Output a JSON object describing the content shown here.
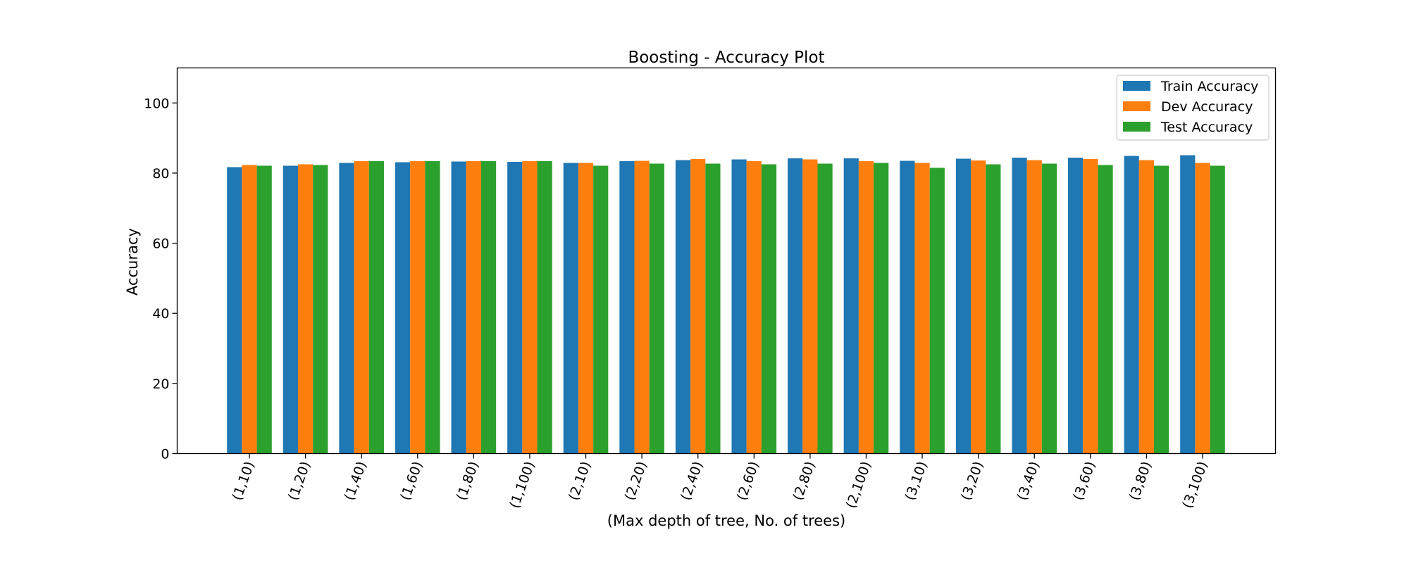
{
  "chart_data": {
    "type": "bar",
    "title": "Boosting - Accuracy Plot",
    "xlabel": "(Max depth of tree, No. of trees)",
    "ylabel": "Accuracy",
    "ylim": [
      0,
      110
    ],
    "yticks": [
      0,
      20,
      40,
      60,
      80,
      100
    ],
    "categories": [
      "(1,10)",
      "(1,20)",
      "(1,40)",
      "(1,60)",
      "(1,80)",
      "(1,100)",
      "(2,10)",
      "(2,20)",
      "(2,40)",
      "(2,60)",
      "(2,80)",
      "(2,100)",
      "(3,10)",
      "(3,20)",
      "(3,40)",
      "(3,60)",
      "(3,80)",
      "(3,100)"
    ],
    "xtick_rotation": "70 degrees",
    "legend_position": "top-right",
    "grid": false,
    "series": [
      {
        "name": "Train Accuracy",
        "color": "#1f77b4",
        "values": [
          81.7,
          82.1,
          82.9,
          83.1,
          83.3,
          83.2,
          82.9,
          83.4,
          83.7,
          83.9,
          84.2,
          84.2,
          83.5,
          84.1,
          84.4,
          84.4,
          84.9,
          85.1
        ]
      },
      {
        "name": "Dev Accuracy",
        "color": "#ff7f0e",
        "values": [
          82.3,
          82.5,
          83.4,
          83.4,
          83.4,
          83.4,
          82.9,
          83.5,
          84.0,
          83.4,
          83.9,
          83.4,
          82.9,
          83.6,
          83.7,
          84.0,
          83.7,
          82.9
        ]
      },
      {
        "name": "Test Accuracy",
        "color": "#2ca02c",
        "values": [
          82.1,
          82.3,
          83.4,
          83.4,
          83.4,
          83.4,
          82.1,
          82.7,
          82.7,
          82.5,
          82.7,
          82.9,
          81.5,
          82.5,
          82.7,
          82.3,
          82.1,
          82.1
        ]
      }
    ]
  }
}
